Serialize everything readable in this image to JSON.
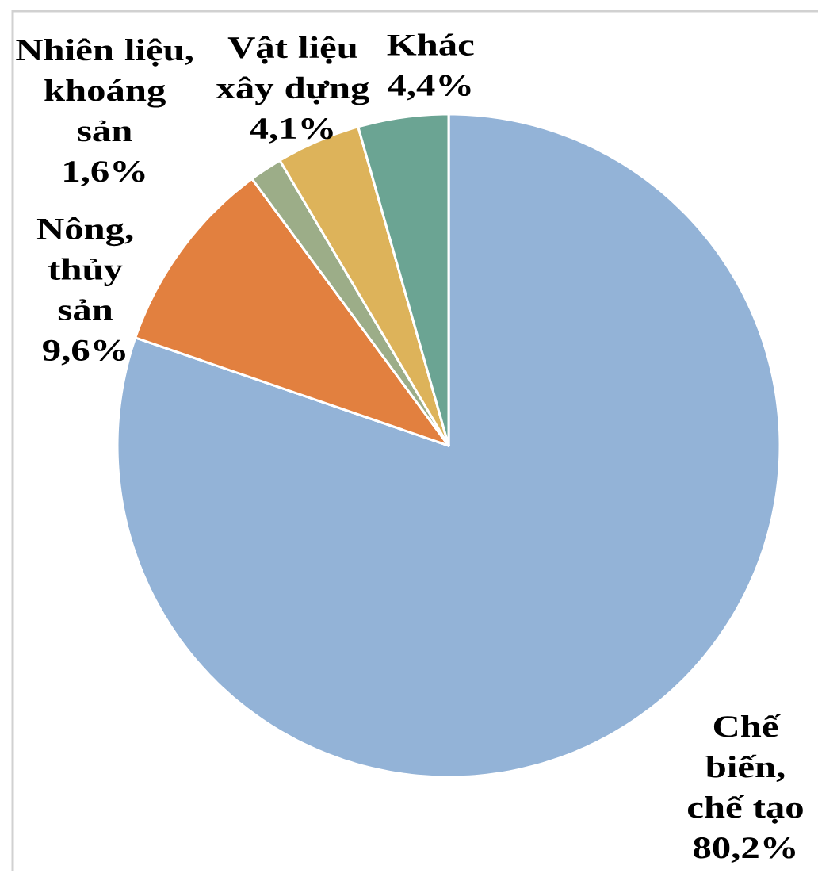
{
  "chart_data": {
    "type": "pie",
    "categories": [
      "Chế biến, chế tạo",
      "Nông, thủy sản",
      "Nhiên liệu, khoáng sản",
      "Vật liệu xây dựng",
      "Khác"
    ],
    "values": [
      80.2,
      9.6,
      1.6,
      4.1,
      4.4
    ],
    "colors": [
      "#93B3D7",
      "#E2803F",
      "#9CAD88",
      "#DDB35A",
      "#6BA493"
    ],
    "value_labels": [
      "80,2%",
      "9,6%",
      "1,6%",
      "4,1%",
      "4,4%"
    ]
  }
}
